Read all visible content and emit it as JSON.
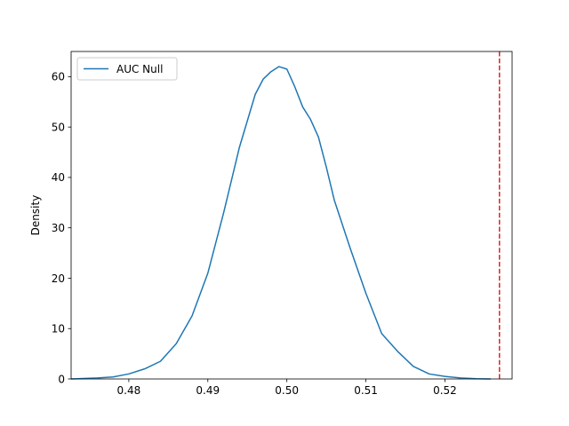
{
  "chart_data": {
    "type": "line",
    "title": "",
    "xlabel": "",
    "ylabel": "Density",
    "xlim": [
      0.4727,
      0.5285
    ],
    "ylim": [
      0,
      65
    ],
    "xticks": [
      0.48,
      0.49,
      0.5,
      0.51,
      0.52
    ],
    "xtick_labels": [
      "0.48",
      "0.49",
      "0.50",
      "0.51",
      "0.52"
    ],
    "yticks": [
      0,
      10,
      20,
      30,
      40,
      50,
      60
    ],
    "ytick_labels": [
      "0",
      "10",
      "20",
      "30",
      "40",
      "50",
      "60"
    ],
    "grid": false,
    "legend": {
      "position": "top-left",
      "entries": [
        "AUC Null"
      ]
    },
    "series": [
      {
        "name": "AUC Null",
        "color": "#1f77b4",
        "x": [
          0.4727,
          0.476,
          0.478,
          0.48,
          0.482,
          0.484,
          0.486,
          0.488,
          0.49,
          0.492,
          0.494,
          0.496,
          0.497,
          0.498,
          0.499,
          0.5,
          0.501,
          0.502,
          0.503,
          0.504,
          0.505,
          0.506,
          0.508,
          0.51,
          0.512,
          0.514,
          0.516,
          0.518,
          0.52,
          0.522,
          0.524,
          0.5258
        ],
        "y": [
          0.0,
          0.2,
          0.4,
          1.0,
          2.0,
          3.5,
          7.0,
          12.5,
          21.0,
          33.0,
          46.0,
          56.5,
          59.5,
          61.0,
          62.0,
          61.5,
          58.0,
          54.0,
          51.5,
          48.0,
          42.0,
          35.5,
          26.0,
          17.0,
          9.0,
          5.5,
          2.5,
          1.0,
          0.5,
          0.2,
          0.05,
          0.0
        ]
      }
    ],
    "reference_line": {
      "orientation": "vertical",
      "x": 0.5269,
      "color": "#d62728",
      "style": "dashed"
    }
  }
}
